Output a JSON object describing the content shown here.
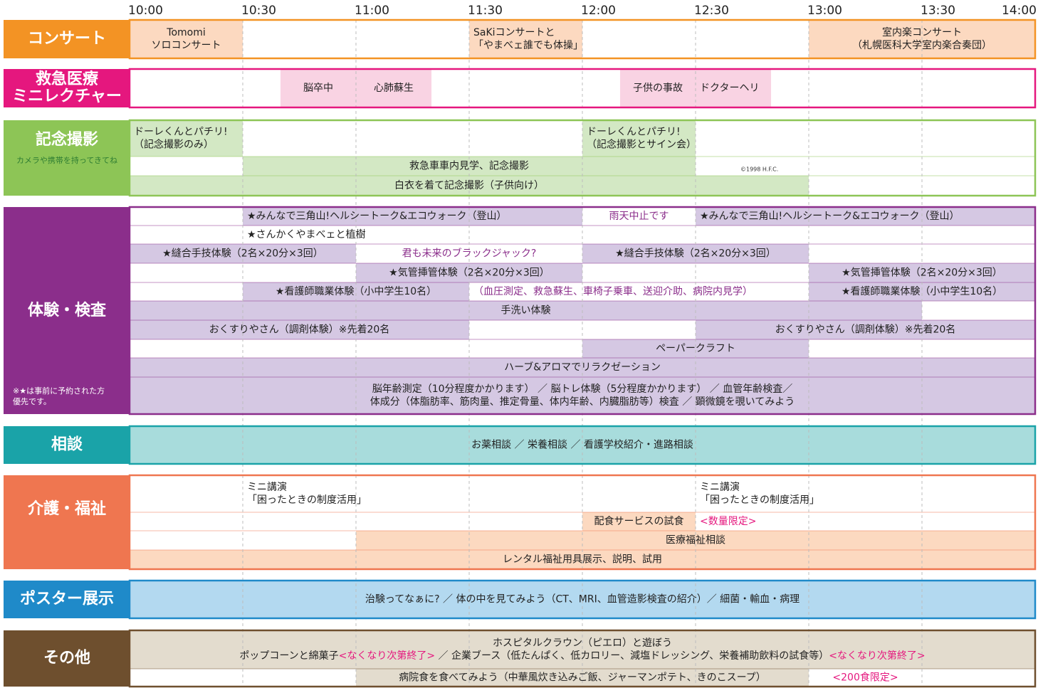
{
  "times": [
    "10:00",
    "10:30",
    "11:00",
    "11:30",
    "12:00",
    "12:30",
    "13:00",
    "13:30",
    "14:00"
  ],
  "sections": [
    {
      "title": [
        "コンサート"
      ],
      "events": [
        {
          "lines": [
            "Tomomi",
            "ソロコンサート"
          ]
        },
        {
          "lines": [
            "SaKiコンサートと",
            "「やまべェ誰でも体操」"
          ]
        },
        {
          "lines": [
            "室内楽コンサート",
            "（札幌医科大学室内楽合奏団）"
          ]
        }
      ]
    },
    {
      "title": [
        "救急医療",
        "ミニレクチャー"
      ],
      "events": [
        {
          "lines": [
            "脳卒中"
          ]
        },
        {
          "lines": [
            "心肺蘇生"
          ]
        },
        {
          "lines": [
            "子供の事故"
          ]
        },
        {
          "lines": [
            "ドクターヘリ"
          ]
        }
      ]
    },
    {
      "title": [
        "記念撮影"
      ],
      "note": [
        "カメラや携帯を持ってきてね"
      ],
      "credit": "©1998 H.F.C.",
      "events": [
        {
          "lines": [
            "ドーレくんとパチリ!",
            "（記念撮影のみ）"
          ]
        },
        {
          "lines": [
            "ドーレくんとパチリ!",
            "（記念撮影とサイン会）"
          ]
        },
        {
          "lines": [
            "救急車車内見学、記念撮影"
          ]
        },
        {
          "lines": [
            "白衣を着て記念撮影（子供向け）"
          ]
        }
      ]
    },
    {
      "title": [
        "体験・検査"
      ],
      "note": [
        "※★は事前に予約された方",
        "優先です。"
      ],
      "events": [
        {
          "lines": [
            "★みんなで三角山!ヘルシートーク&エコウォーク（登山）"
          ]
        },
        {
          "lines": [
            "雨天中止です"
          ],
          "color": "#8b2e8b"
        },
        {
          "lines": [
            "★みんなで三角山!ヘルシートーク&エコウォーク（登山）"
          ]
        },
        {
          "lines": [
            "★さんかくやまべェと植樹"
          ]
        },
        {
          "lines": [
            "★縫合手技体験（2名×20分×3回）"
          ]
        },
        {
          "lines": [
            "君も未来のブラックジャック?"
          ],
          "color": "#8b2e8b"
        },
        {
          "lines": [
            "★縫合手技体験（2名×20分×3回）"
          ]
        },
        {
          "lines": [
            "★気管挿管体験（2名×20分×3回）"
          ]
        },
        {
          "lines": [
            "★気管挿管体験（2名×20分×3回）"
          ]
        },
        {
          "lines": [
            "★看護師職業体験（小中学生10名）"
          ]
        },
        {
          "lines": [
            "（血圧測定、救急蘇生、車椅子乗車、送迎介助、病院内見学）"
          ],
          "color": "#8b2e8b"
        },
        {
          "lines": [
            "★看護師職業体験（小中学生10名）"
          ]
        },
        {
          "lines": [
            "手洗い体験"
          ]
        },
        {
          "lines": [
            "おくすりやさん（調剤体験）※先着20名"
          ]
        },
        {
          "lines": [
            "おくすりやさん（調剤体験）※先着20名"
          ]
        },
        {
          "lines": [
            "ペーパークラフト"
          ]
        },
        {
          "lines": [
            "ハーブ&アロマでリラクゼーション"
          ]
        },
        {
          "lines": [
            "脳年齢測定（10分程度かかります） ／ 脳トレ体験（5分程度かかります） ／ 血管年齢検査／",
            "体成分（体脂肪率、筋肉量、推定骨量、体内年齢、内臓脂肪等）検査 ／ 顕微鏡を覗いてみよう"
          ]
        }
      ]
    },
    {
      "title": [
        "相談"
      ],
      "events": [
        {
          "lines": [
            "お薬相談 ／ 栄養相談 ／ 看護学校紹介・進路相談"
          ]
        }
      ]
    },
    {
      "title": [
        "介護・福祉"
      ],
      "events": [
        {
          "lines": [
            "ミニ講演",
            "「困ったときの制度活用」"
          ]
        },
        {
          "lines": [
            "ミニ講演",
            "「困ったときの制度活用」"
          ]
        },
        {
          "lines": [
            "配食サービスの試食"
          ]
        },
        {
          "lines": [
            "<数量限定>"
          ],
          "color": "#e5177e"
        },
        {
          "lines": [
            "医療福祉相談"
          ]
        },
        {
          "lines": [
            "レンタル福祉用具展示、説明、試用"
          ]
        }
      ]
    },
    {
      "title": [
        "ポスター展示"
      ],
      "events": [
        {
          "lines": [
            "治験ってなぁに? ／ 体の中を見てみよう（CT、MRI、血管造影検査の紹介）／ 細菌・輸血・病理"
          ]
        }
      ]
    },
    {
      "title": [
        "その他"
      ],
      "events": [
        {
          "lines": [
            "ホスピタルクラウン（ピエロ）と遊ぼう",
            [
              "ポップコーンと綿菓子",
              {
                "text": "<なくなり次第終了>",
                "color": "#e5177e"
              },
              " ／ 企業ブース（低たんぱく、低カロリー、減塩ドレッシング、栄養補助飲料の試食等）",
              {
                "text": "<なくなり次第終了>",
                "color": "#e5177e"
              }
            ]
          ]
        },
        {
          "lines": [
            "病院食を食べてみよう（中華風炊き込みご飯、ジャーマンポテト、きのこスープ）"
          ]
        },
        {
          "lines": [
            "<200食限定>"
          ],
          "color": "#e5177e"
        }
      ]
    }
  ]
}
